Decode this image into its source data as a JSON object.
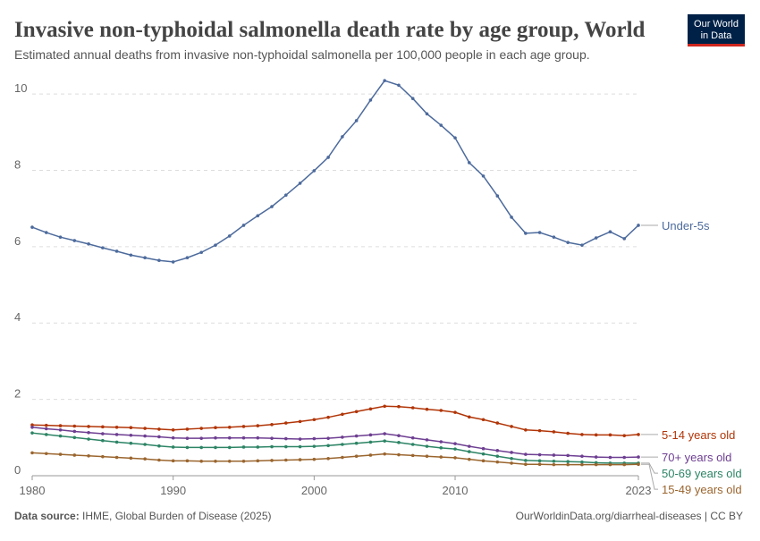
{
  "chart_data": {
    "type": "line",
    "title": "Invasive non-typhoidal salmonella death rate by age group, World",
    "subtitle": "Estimated annual deaths from invasive non-typhoidal salmonella per 100,000 people in each age group.",
    "logo": [
      "Our World",
      "in Data"
    ],
    "source_label": "Data source:",
    "source": "IHME, Global Burden of Disease (2025)",
    "footer_right": "OurWorldinData.org/diarrheal-diseases | CC BY",
    "x": [
      1980,
      1981,
      1982,
      1983,
      1984,
      1985,
      1986,
      1987,
      1988,
      1989,
      1990,
      1991,
      1992,
      1993,
      1994,
      1995,
      1996,
      1997,
      1998,
      1999,
      2000,
      2001,
      2002,
      2003,
      2004,
      2005,
      2006,
      2007,
      2008,
      2009,
      2010,
      2011,
      2012,
      2013,
      2014,
      2015,
      2016,
      2017,
      2018,
      2019,
      2020,
      2021,
      2022,
      2023
    ],
    "xlim": [
      1980,
      2023
    ],
    "xticks": [
      1980,
      1990,
      2000,
      2010,
      2023
    ],
    "ylim": [
      0,
      10.4
    ],
    "yticks": [
      0,
      2,
      4,
      6,
      8,
      10
    ],
    "grid": true,
    "series": [
      {
        "name": "Under-5s",
        "color": "#4c6a9c",
        "values": [
          6.51,
          6.37,
          6.25,
          6.16,
          6.07,
          5.97,
          5.88,
          5.78,
          5.71,
          5.64,
          5.6,
          5.71,
          5.85,
          6.04,
          6.28,
          6.56,
          6.81,
          7.05,
          7.35,
          7.66,
          7.99,
          8.34,
          8.88,
          9.3,
          9.84,
          10.35,
          10.23,
          9.88,
          9.48,
          9.18,
          8.85,
          8.2,
          7.85,
          7.33,
          6.77,
          6.35,
          6.37,
          6.25,
          6.11,
          6.04,
          6.23,
          6.39,
          6.21,
          6.56
        ]
      },
      {
        "name": "5-14 years old",
        "color": "#b13507",
        "values": [
          1.33,
          1.32,
          1.31,
          1.3,
          1.29,
          1.28,
          1.27,
          1.26,
          1.24,
          1.22,
          1.2,
          1.22,
          1.24,
          1.26,
          1.27,
          1.29,
          1.31,
          1.34,
          1.38,
          1.42,
          1.47,
          1.53,
          1.61,
          1.68,
          1.75,
          1.82,
          1.81,
          1.78,
          1.74,
          1.71,
          1.66,
          1.54,
          1.47,
          1.38,
          1.29,
          1.2,
          1.18,
          1.15,
          1.11,
          1.08,
          1.07,
          1.07,
          1.05,
          1.08
        ]
      },
      {
        "name": "70+ years old",
        "color": "#6d3e91",
        "values": [
          1.27,
          1.23,
          1.2,
          1.16,
          1.13,
          1.1,
          1.08,
          1.06,
          1.04,
          1.02,
          0.99,
          0.98,
          0.98,
          0.99,
          0.99,
          0.99,
          0.99,
          0.98,
          0.97,
          0.96,
          0.97,
          0.98,
          1.01,
          1.04,
          1.07,
          1.1,
          1.05,
          0.99,
          0.94,
          0.89,
          0.84,
          0.77,
          0.71,
          0.66,
          0.61,
          0.56,
          0.55,
          0.54,
          0.53,
          0.51,
          0.49,
          0.48,
          0.48,
          0.49
        ]
      },
      {
        "name": "50-69 years old",
        "color": "#2c8465",
        "values": [
          1.12,
          1.08,
          1.04,
          1.0,
          0.96,
          0.92,
          0.88,
          0.85,
          0.82,
          0.78,
          0.75,
          0.74,
          0.74,
          0.74,
          0.74,
          0.75,
          0.75,
          0.76,
          0.76,
          0.76,
          0.77,
          0.79,
          0.82,
          0.85,
          0.88,
          0.91,
          0.87,
          0.82,
          0.77,
          0.73,
          0.7,
          0.63,
          0.57,
          0.51,
          0.45,
          0.4,
          0.39,
          0.38,
          0.37,
          0.36,
          0.34,
          0.33,
          0.33,
          0.33
        ]
      },
      {
        "name": "15-49 years old",
        "color": "#9a652e",
        "values": [
          0.6,
          0.58,
          0.56,
          0.54,
          0.52,
          0.5,
          0.48,
          0.46,
          0.44,
          0.41,
          0.39,
          0.39,
          0.38,
          0.38,
          0.38,
          0.38,
          0.39,
          0.4,
          0.41,
          0.42,
          0.43,
          0.45,
          0.48,
          0.51,
          0.54,
          0.57,
          0.55,
          0.53,
          0.51,
          0.49,
          0.47,
          0.43,
          0.39,
          0.36,
          0.33,
          0.3,
          0.3,
          0.29,
          0.29,
          0.29,
          0.29,
          0.29,
          0.29,
          0.3
        ]
      }
    ]
  }
}
